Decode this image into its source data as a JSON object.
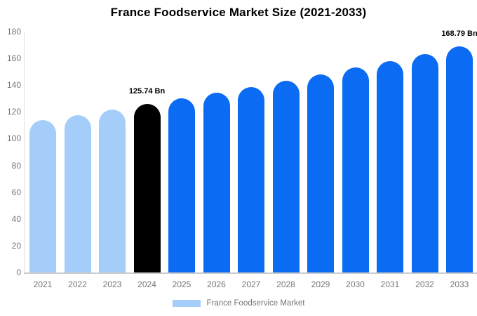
{
  "title": "France Foodservice Market Size (2021-2033)",
  "legend": {
    "label": "France Foodservice Market",
    "swatch_color": "#a5cdf9"
  },
  "colors": {
    "light": "#a5cdf9",
    "primary": "#0b6cf3",
    "highlight": "#000000",
    "axis_text": "#757575",
    "axis_line": "#d6d6d6",
    "value_label_text": "#000000"
  },
  "chart_data": {
    "type": "bar",
    "title": "France Foodservice Market Size (2021-2033)",
    "xlabel": "",
    "ylabel": "",
    "ylim": [
      0,
      180
    ],
    "yticks": [
      0,
      20,
      40,
      60,
      80,
      100,
      120,
      140,
      160,
      180
    ],
    "grid": false,
    "legend_position": "bottom",
    "unit": "Bn",
    "categories": [
      "2021",
      "2022",
      "2023",
      "2024",
      "2025",
      "2026",
      "2027",
      "2028",
      "2029",
      "2030",
      "2031",
      "2032",
      "2033"
    ],
    "series": [
      {
        "name": "France Foodservice Market",
        "values": [
          113.9,
          117.7,
          121.6,
          125.74,
          129.9,
          134.3,
          138.7,
          143.4,
          148.1,
          153.1,
          158.2,
          163.4,
          168.79
        ]
      }
    ],
    "bar_color_keys": [
      "light",
      "light",
      "light",
      "highlight",
      "primary",
      "primary",
      "primary",
      "primary",
      "primary",
      "primary",
      "primary",
      "primary",
      "primary"
    ],
    "annotations": [
      {
        "category": "2024",
        "text": "125.74 Bn"
      },
      {
        "category": "2033",
        "text": "168.79 Bn"
      }
    ]
  }
}
